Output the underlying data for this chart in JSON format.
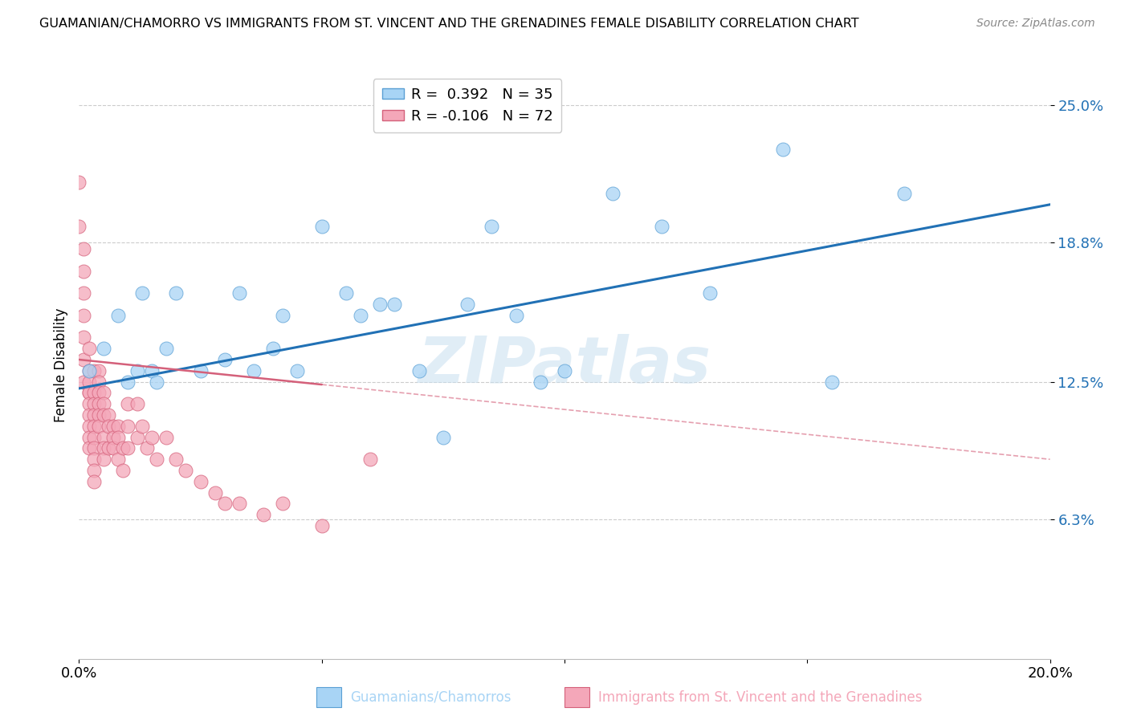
{
  "title": "GUAMANIAN/CHAMORRO VS IMMIGRANTS FROM ST. VINCENT AND THE GRENADINES FEMALE DISABILITY CORRELATION CHART",
  "source": "Source: ZipAtlas.com",
  "ylabel": "Female Disability",
  "xlim": [
    0.0,
    0.2
  ],
  "ylim": [
    0.0,
    0.265
  ],
  "xticks": [
    0.0,
    0.05,
    0.1,
    0.15,
    0.2
  ],
  "xticklabels": [
    "0.0%",
    "",
    "",
    "",
    "20.0%"
  ],
  "ytick_positions": [
    0.063,
    0.125,
    0.188,
    0.25
  ],
  "ytick_labels": [
    "6.3%",
    "12.5%",
    "18.8%",
    "25.0%"
  ],
  "blue_R": 0.392,
  "blue_N": 35,
  "pink_R": -0.106,
  "pink_N": 72,
  "blue_label": "Guamanians/Chamorros",
  "pink_label": "Immigrants from St. Vincent and the Grenadines",
  "blue_color": "#a8d4f5",
  "pink_color": "#f4a7b9",
  "blue_edge_color": "#5a9fd4",
  "pink_edge_color": "#d4607a",
  "blue_line_color": "#2171b5",
  "pink_line_color": "#d4607a",
  "background_color": "#ffffff",
  "grid_color": "#cccccc",
  "blue_points_x": [
    0.002,
    0.005,
    0.008,
    0.01,
    0.012,
    0.013,
    0.015,
    0.016,
    0.018,
    0.02,
    0.025,
    0.03,
    0.033,
    0.036,
    0.04,
    0.042,
    0.045,
    0.05,
    0.055,
    0.058,
    0.062,
    0.065,
    0.07,
    0.075,
    0.08,
    0.085,
    0.09,
    0.095,
    0.1,
    0.11,
    0.12,
    0.13,
    0.145,
    0.155,
    0.17
  ],
  "blue_points_y": [
    0.13,
    0.14,
    0.155,
    0.125,
    0.13,
    0.165,
    0.13,
    0.125,
    0.14,
    0.165,
    0.13,
    0.135,
    0.165,
    0.13,
    0.14,
    0.155,
    0.13,
    0.195,
    0.165,
    0.155,
    0.16,
    0.16,
    0.13,
    0.1,
    0.16,
    0.195,
    0.155,
    0.125,
    0.13,
    0.21,
    0.195,
    0.165,
    0.23,
    0.125,
    0.21
  ],
  "pink_points_x": [
    0.0,
    0.0,
    0.001,
    0.001,
    0.001,
    0.001,
    0.001,
    0.001,
    0.001,
    0.002,
    0.002,
    0.002,
    0.002,
    0.002,
    0.002,
    0.002,
    0.002,
    0.002,
    0.002,
    0.003,
    0.003,
    0.003,
    0.003,
    0.003,
    0.003,
    0.003,
    0.003,
    0.003,
    0.003,
    0.004,
    0.004,
    0.004,
    0.004,
    0.004,
    0.004,
    0.005,
    0.005,
    0.005,
    0.005,
    0.005,
    0.005,
    0.006,
    0.006,
    0.006,
    0.007,
    0.007,
    0.007,
    0.008,
    0.008,
    0.008,
    0.009,
    0.009,
    0.01,
    0.01,
    0.01,
    0.012,
    0.012,
    0.013,
    0.014,
    0.015,
    0.016,
    0.018,
    0.02,
    0.022,
    0.025,
    0.028,
    0.03,
    0.033,
    0.038,
    0.042,
    0.05,
    0.06
  ],
  "pink_points_y": [
    0.215,
    0.195,
    0.185,
    0.175,
    0.165,
    0.155,
    0.145,
    0.135,
    0.125,
    0.14,
    0.13,
    0.125,
    0.12,
    0.12,
    0.115,
    0.11,
    0.105,
    0.1,
    0.095,
    0.13,
    0.12,
    0.115,
    0.11,
    0.105,
    0.1,
    0.095,
    0.09,
    0.085,
    0.08,
    0.13,
    0.125,
    0.12,
    0.115,
    0.11,
    0.105,
    0.12,
    0.115,
    0.11,
    0.1,
    0.095,
    0.09,
    0.11,
    0.105,
    0.095,
    0.105,
    0.1,
    0.095,
    0.105,
    0.1,
    0.09,
    0.095,
    0.085,
    0.115,
    0.105,
    0.095,
    0.115,
    0.1,
    0.105,
    0.095,
    0.1,
    0.09,
    0.1,
    0.09,
    0.085,
    0.08,
    0.075,
    0.07,
    0.07,
    0.065,
    0.07,
    0.06,
    0.09
  ],
  "blue_trend_x": [
    0.0,
    0.2
  ],
  "blue_trend_y": [
    0.122,
    0.205
  ],
  "pink_trend_x": [
    0.0,
    0.2
  ],
  "pink_trend_y": [
    0.135,
    0.09
  ]
}
